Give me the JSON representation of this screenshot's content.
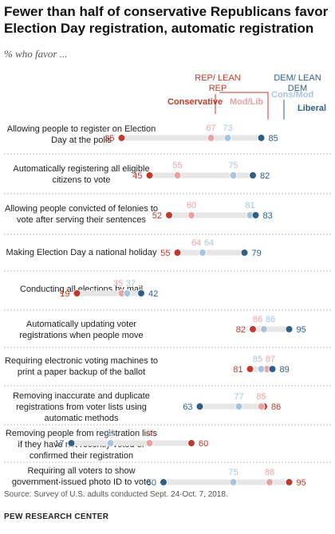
{
  "title": "Fewer than half of conservative Republicans favor Election Day registration, automatic registration",
  "subtitle": "% who favor ...",
  "headers": {
    "rep_group": "REP/ LEAN REP",
    "dem_group": "DEM/ LEAN DEM",
    "conservative": "Conservative",
    "mod_lib": "Mod/Lib",
    "cons_mod": "Cons/Mod",
    "liberal": "Liberal"
  },
  "colors": {
    "conservative": "#c0392b",
    "mod_lib": "#e8a2a2",
    "cons_mod": "#a8c4dc",
    "liberal": "#2f5f87",
    "track": "#e6e6e6",
    "divider": "#bbbbbb"
  },
  "source": "Source: Survey of U.S. adults conducted Sept. 24-Oct. 7, 2018.",
  "brand": "PEW RESEARCH CENTER",
  "chart_data": {
    "type": "dot",
    "title": "Fewer than half of conservative Republicans favor Election Day registration, automatic registration",
    "xlim": [
      0,
      100
    ],
    "series_names": [
      "Conservative",
      "Mod/Lib",
      "Cons/Mod",
      "Liberal"
    ],
    "categories": [
      {
        "label": "Allowing people to register on Election Day at the polls",
        "Conservative": 35,
        "Mod/Lib": 67,
        "Cons/Mod": 73,
        "Liberal": 85
      },
      {
        "label": "Automatically registering all eligible citizens to vote",
        "Conservative": 45,
        "Mod/Lib": 55,
        "Cons/Mod": 75,
        "Liberal": 82
      },
      {
        "label": "Allowing people convicted of felonies to vote after serving their sentences",
        "Conservative": 52,
        "Mod/Lib": 60,
        "Cons/Mod": 81,
        "Liberal": 83
      },
      {
        "label": "Making Election Day a national holiday",
        "Conservative": 55,
        "Mod/Lib": 64,
        "Cons/Mod": 64,
        "Liberal": 79
      },
      {
        "label": "Conducting all elections by mail",
        "Conservative": 19,
        "Mod/Lib": 35,
        "Cons/Mod": 37,
        "Liberal": 42
      },
      {
        "label": "Automatically updating voter registrations when people move",
        "Conservative": 82,
        "Mod/Lib": 86,
        "Cons/Mod": 86,
        "Liberal": 95
      },
      {
        "label": "Requiring electronic voting machines to print a paper backup of the ballot",
        "Conservative": 81,
        "Mod/Lib": 87,
        "Cons/Mod": 85,
        "Liberal": 89
      },
      {
        "label": "Removing inaccurate and duplicate registrations from voter lists using automatic methods",
        "Conservative": 86,
        "Mod/Lib": 85,
        "Cons/Mod": 77,
        "Liberal": 63
      },
      {
        "label": "Removing people from registration lists if they have not recently voted or confirmed their registration",
        "Conservative": 60,
        "Mod/Lib": 45,
        "Cons/Mod": 31,
        "Liberal": 17
      },
      {
        "label": "Requiring all voters to show government-issued photo ID to vote",
        "Conservative": 95,
        "Mod/Lib": 88,
        "Cons/Mod": 75,
        "Liberal": 50
      }
    ]
  }
}
